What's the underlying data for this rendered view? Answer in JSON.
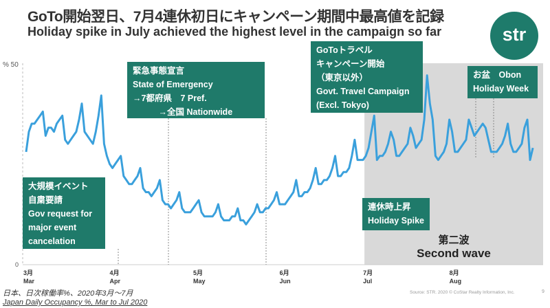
{
  "header": {
    "title_jp": "GoTo開始翌日、7月4連休初日にキャンペーン期間中最高値を記録",
    "title_en": "Holiday spike in July achieved the highest level in the campaign so far",
    "logo": "str"
  },
  "annotations": {
    "emergency": [
      "緊急事態宣言",
      "State of Emergency",
      "→7都府県　7 Pref.",
      "　　　→全国 Nationwide"
    ],
    "goto": [
      "GoToトラベル",
      "キャンペーン開始",
      "（東京以外）",
      "Govt. Travel Campaign",
      "(Excl. Tokyo)"
    ],
    "obon": [
      "お盆　Obon",
      "Holiday Week"
    ],
    "event": [
      "大規模イベント",
      "自粛要請",
      "Gov request for",
      "major event",
      "cancelation"
    ],
    "holiday": [
      "連休時上昇",
      "Holiday Spike"
    ],
    "wave_jp": "第二波",
    "wave_en": "Second wave"
  },
  "footer": {
    "caption_jp": "日本、日次稼働率%、2020年3月～7月",
    "caption_en": "Japan Daily Occupancy %, Mar to Jul 2020",
    "source": "Source: STR. 2020 © CoStar Realty Information, Inc.",
    "page": "9"
  },
  "colors": {
    "line": "#3aa0dc",
    "box": "#1f7a6a",
    "shade": "#d9d9d9"
  },
  "chart_data": {
    "type": "line",
    "title": "Japan Daily Occupancy %",
    "ylabel": "%",
    "ylim": [
      0,
      50
    ],
    "yticks": [
      "0",
      "50"
    ],
    "start_date": "2020-03-01",
    "xticks": [
      {
        "day": 0,
        "jp": "3月",
        "en": "Mar"
      },
      {
        "day": 31,
        "jp": "4月",
        "en": "Apr"
      },
      {
        "day": 61,
        "jp": "5月",
        "en": "May"
      },
      {
        "day": 92,
        "jp": "6月",
        "en": "Jun"
      },
      {
        "day": 122,
        "jp": "7月",
        "en": "Jul"
      },
      {
        "day": 153,
        "jp": "8月",
        "en": "Aug"
      }
    ],
    "shaded_from_day": 122,
    "values": [
      28,
      33,
      35,
      35,
      36,
      37,
      38,
      32,
      34,
      34,
      33,
      35,
      36,
      37,
      31,
      30,
      31,
      32,
      33,
      36,
      40,
      33,
      32,
      31,
      30,
      33,
      37,
      42,
      30,
      27,
      25,
      24,
      25,
      26,
      27,
      22,
      21,
      20,
      20,
      21,
      22,
      24,
      19,
      18,
      18,
      17,
      18,
      19,
      21,
      16,
      15,
      15,
      14,
      15,
      16,
      18,
      14,
      13,
      13,
      13,
      14,
      15,
      16,
      13,
      12,
      12,
      12,
      12,
      13,
      15,
      12,
      11,
      11,
      11,
      12,
      12,
      14,
      11,
      11,
      10,
      11,
      12,
      13,
      15,
      13,
      13,
      14,
      14,
      15,
      16,
      18,
      15,
      15,
      15,
      16,
      17,
      18,
      21,
      17,
      17,
      18,
      18,
      19,
      21,
      24,
      20,
      20,
      21,
      21,
      22,
      24,
      27,
      22,
      22,
      23,
      23,
      24,
      27,
      31,
      26,
      26,
      26,
      27,
      29,
      33,
      37,
      26,
      27,
      27,
      28,
      30,
      33,
      31,
      27,
      27,
      28,
      29,
      30,
      34,
      32,
      29,
      30,
      31,
      36,
      47,
      40,
      36,
      27,
      26,
      27,
      28,
      30,
      36,
      33,
      28,
      28,
      29,
      30,
      31,
      36,
      34,
      32,
      33,
      34,
      35,
      34,
      31,
      28,
      28,
      28,
      29,
      30,
      32,
      35,
      30,
      28,
      28,
      29,
      30,
      34,
      36,
      26,
      29
    ]
  }
}
